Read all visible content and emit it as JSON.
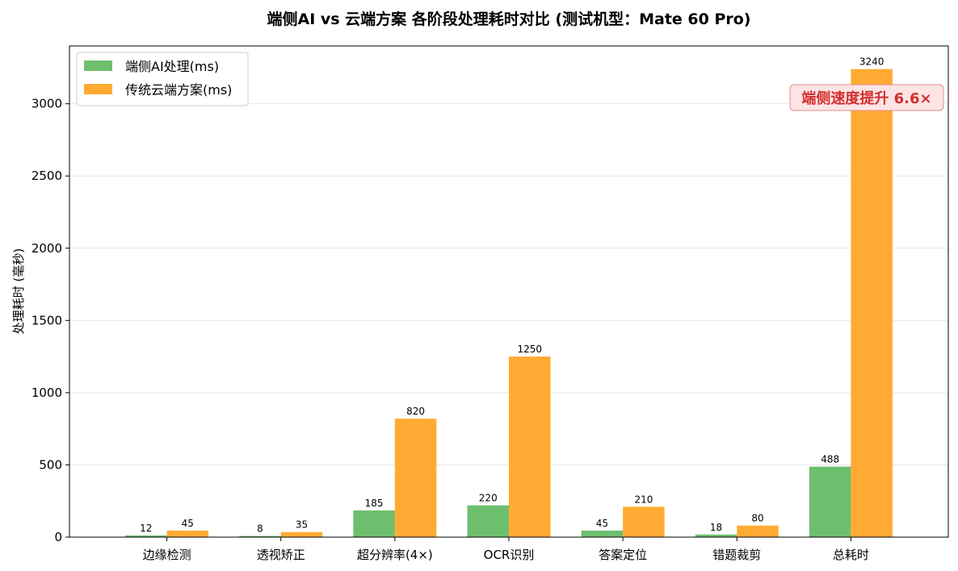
{
  "colors": {
    "edge": "#6dbf6d",
    "cloud": "#ffab33",
    "annotation_text": "#d32f2f",
    "annotation_bg": "#fde4e4",
    "annotation_border": "#e58a8a",
    "grid": "#e6e6e6"
  },
  "chart_data": {
    "type": "bar",
    "title": "端侧AI vs 云端方案 各阶段处理耗时对比 (测试机型：Mate 60 Pro)",
    "xlabel": "",
    "ylabel": "处理耗时 (毫秒)",
    "ylim": [
      0,
      3400
    ],
    "yticks": [
      0,
      500,
      1000,
      1500,
      2000,
      2500,
      3000
    ],
    "grid": "horizontal",
    "legend_position": "top-left",
    "categories": [
      "边缘检测",
      "透视矫正",
      "超分辨率(4×)",
      "OCR识别",
      "答案定位",
      "错题裁剪",
      "总耗时"
    ],
    "series": [
      {
        "name": "端侧AI处理(ms)",
        "color": "#6dbf6d",
        "values": [
          12,
          8,
          185,
          220,
          45,
          18,
          488
        ]
      },
      {
        "name": "传统云端方案(ms)",
        "color": "#ffab33",
        "values": [
          45,
          35,
          820,
          1250,
          210,
          80,
          3240
        ]
      }
    ],
    "annotation": {
      "text": "端侧速度提升 6.6×",
      "near_category": "总耗时"
    }
  }
}
